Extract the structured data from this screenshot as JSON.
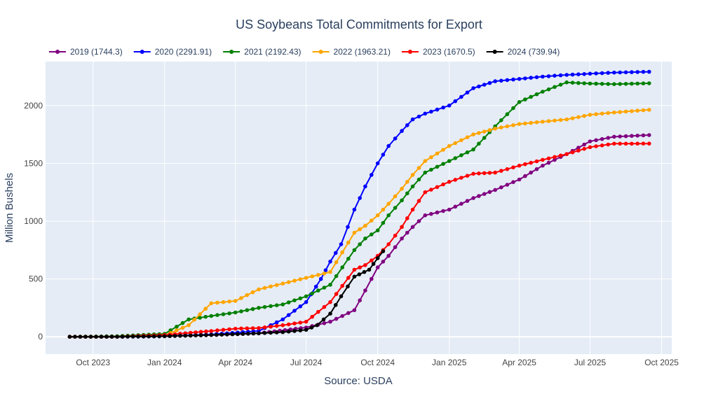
{
  "chart_data": {
    "type": "line",
    "title": "US Soybeans Total Commitments for Export",
    "xlabel": "Source: USDA",
    "ylabel": "Million Bushels",
    "x_axis_type": "date",
    "xlim": [
      "2023-08-01",
      "2025-10-14"
    ],
    "ylim": [
      -150,
      2380
    ],
    "x_tick_values": [
      "2023-10-01",
      "2024-01-01",
      "2024-04-01",
      "2024-07-01",
      "2024-10-01",
      "2025-01-01",
      "2025-04-01",
      "2025-07-01",
      "2025-10-01"
    ],
    "x_tick_labels": [
      "Oct 2023",
      "Jan 2024",
      "Apr 2024",
      "Jul 2024",
      "Oct 2024",
      "Jan 2025",
      "Apr 2025",
      "Jul 2025",
      "Oct 2025"
    ],
    "y_ticks": [
      0,
      500,
      1000,
      1500,
      2000
    ],
    "y_tick_labels": [
      "0",
      "500",
      "1000",
      "1500",
      "2000"
    ],
    "grid": true,
    "legend_position": "top-left",
    "series": [
      {
        "name": "2019 (1744.3)",
        "color": "#800080",
        "x": [
          "2023-09-01",
          "2023-11-01",
          "2024-01-01",
          "2024-03-01",
          "2024-05-01",
          "2024-07-01",
          "2024-08-01",
          "2024-09-01",
          "2024-09-15",
          "2024-10-01",
          "2024-10-15",
          "2024-11-01",
          "2024-11-15",
          "2024-12-01",
          "2025-01-01",
          "2025-02-01",
          "2025-03-01",
          "2025-04-01",
          "2025-05-01",
          "2025-06-01",
          "2025-07-01",
          "2025-08-01",
          "2025-09-15"
        ],
        "y": [
          0,
          0,
          5,
          15,
          30,
          80,
          130,
          230,
          400,
          600,
          700,
          850,
          950,
          1050,
          1100,
          1200,
          1270,
          1360,
          1480,
          1580,
          1690,
          1730,
          1744.3
        ]
      },
      {
        "name": "2020 (2291.91)",
        "color": "#0000ff",
        "x": [
          "2023-09-01",
          "2023-11-01",
          "2024-01-01",
          "2024-03-01",
          "2024-05-01",
          "2024-06-01",
          "2024-07-01",
          "2024-07-20",
          "2024-08-01",
          "2024-08-15",
          "2024-09-01",
          "2024-09-15",
          "2024-10-01",
          "2024-10-15",
          "2024-11-01",
          "2024-11-15",
          "2024-12-01",
          "2025-01-01",
          "2025-02-01",
          "2025-03-01",
          "2025-04-01",
          "2025-05-01",
          "2025-06-01",
          "2025-07-01",
          "2025-08-01",
          "2025-09-15"
        ],
        "y": [
          0,
          0,
          5,
          20,
          50,
          150,
          300,
          500,
          650,
          800,
          1100,
          1300,
          1500,
          1650,
          1780,
          1880,
          1930,
          2000,
          2150,
          2210,
          2230,
          2250,
          2265,
          2275,
          2285,
          2291.91
        ]
      },
      {
        "name": "2021 (2192.43)",
        "color": "#008000",
        "x": [
          "2023-09-01",
          "2023-11-01",
          "2024-01-01",
          "2024-02-01",
          "2024-03-01",
          "2024-04-01",
          "2024-05-01",
          "2024-06-01",
          "2024-07-01",
          "2024-08-01",
          "2024-09-01",
          "2024-09-15",
          "2024-10-01",
          "2024-10-15",
          "2024-11-01",
          "2024-11-15",
          "2024-12-01",
          "2025-01-01",
          "2025-02-01",
          "2025-03-01",
          "2025-04-01",
          "2025-05-01",
          "2025-06-01",
          "2025-07-01",
          "2025-08-01",
          "2025-09-15"
        ],
        "y": [
          0,
          5,
          25,
          150,
          180,
          210,
          250,
          280,
          350,
          450,
          750,
          850,
          920,
          1050,
          1180,
          1300,
          1420,
          1520,
          1620,
          1820,
          2030,
          2120,
          2200,
          2190,
          2185,
          2192.43
        ]
      },
      {
        "name": "2022 (1963.21)",
        "color": "#ffa500",
        "x": [
          "2023-09-01",
          "2023-11-01",
          "2024-01-01",
          "2024-02-01",
          "2024-03-01",
          "2024-04-01",
          "2024-05-01",
          "2024-06-01",
          "2024-07-01",
          "2024-08-01",
          "2024-09-01",
          "2024-09-15",
          "2024-10-01",
          "2024-10-15",
          "2024-11-01",
          "2024-11-15",
          "2024-12-01",
          "2025-01-01",
          "2025-02-01",
          "2025-03-01",
          "2025-04-01",
          "2025-05-01",
          "2025-06-01",
          "2025-07-01",
          "2025-08-01",
          "2025-09-15"
        ],
        "y": [
          0,
          0,
          10,
          100,
          290,
          310,
          410,
          460,
          510,
          560,
          900,
          960,
          1050,
          1150,
          1280,
          1400,
          1520,
          1650,
          1750,
          1800,
          1840,
          1860,
          1880,
          1920,
          1940,
          1963.21
        ]
      },
      {
        "name": "2023 (1670.5)",
        "color": "#ff0000",
        "x": [
          "2023-09-01",
          "2023-11-01",
          "2024-01-01",
          "2024-03-01",
          "2024-04-01",
          "2024-05-01",
          "2024-06-01",
          "2024-07-01",
          "2024-08-01",
          "2024-09-01",
          "2024-09-15",
          "2024-10-01",
          "2024-10-15",
          "2024-11-01",
          "2024-11-15",
          "2024-12-01",
          "2025-01-01",
          "2025-02-01",
          "2025-03-01",
          "2025-04-01",
          "2025-05-01",
          "2025-06-01",
          "2025-07-01",
          "2025-08-01",
          "2025-09-15"
        ],
        "y": [
          0,
          0,
          15,
          50,
          70,
          75,
          100,
          130,
          300,
          580,
          620,
          700,
          800,
          950,
          1100,
          1250,
          1340,
          1410,
          1420,
          1480,
          1530,
          1580,
          1640,
          1670,
          1670.5
        ]
      },
      {
        "name": "2024 (739.94)",
        "color": "#000000",
        "x": [
          "2023-09-01",
          "2023-11-01",
          "2024-01-01",
          "2024-03-01",
          "2024-05-01",
          "2024-06-01",
          "2024-07-01",
          "2024-07-15",
          "2024-08-01",
          "2024-08-15",
          "2024-09-01",
          "2024-09-20",
          "2024-10-01",
          "2024-10-08"
        ],
        "y": [
          0,
          0,
          5,
          15,
          30,
          40,
          60,
          100,
          200,
          350,
          520,
          580,
          680,
          739.94
        ]
      }
    ]
  }
}
